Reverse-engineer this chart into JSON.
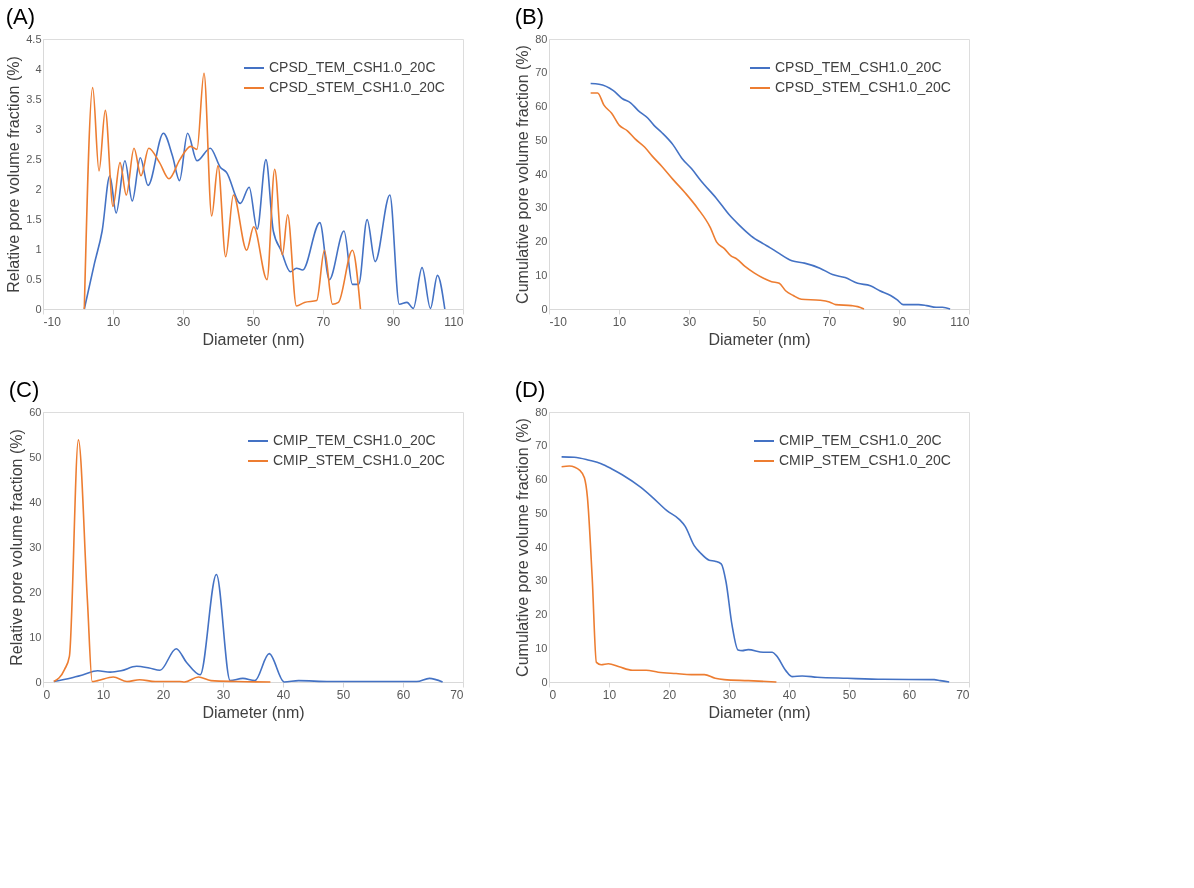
{
  "chart_data": [
    {
      "type": "line",
      "title": "(A)",
      "xlabel": "Diameter (nm)",
      "ylabel": "Relative pore volume fraction (%)",
      "xlim": [
        -10,
        110
      ],
      "xticks": [
        -10,
        10,
        30,
        50,
        70,
        90,
        110
      ],
      "ylim": [
        0,
        4.5
      ],
      "yticks": [
        0,
        0.5,
        1,
        1.5,
        2,
        2.5,
        3,
        3.5,
        4,
        4.5
      ],
      "legend": "top right",
      "series": [
        {
          "name": "CPSD_TEM_CSH1.0_20C",
          "color": "#4472c4",
          "x": [
            1.8,
            4.7,
            6.9,
            9.1,
            10.9,
            13.4,
            15.5,
            17.8,
            20,
            24.4,
            27,
            29,
            31.3,
            34,
            37.8,
            40.7,
            42.4,
            46.4,
            48.9,
            51.2,
            53.7,
            55.8,
            58,
            60.7,
            62.4,
            64.2,
            69.1,
            71.8,
            76,
            78.4,
            80.2,
            82.6,
            84.9,
            89.1,
            91.8,
            94,
            95.8,
            98.3,
            100.7,
            102.7,
            104.8
          ],
          "values": [
            0,
            0.76,
            1.3,
            2.22,
            1.6,
            2.47,
            1.8,
            2.52,
            2.06,
            2.93,
            2.55,
            2.14,
            2.93,
            2.47,
            2.68,
            2.36,
            2.28,
            1.76,
            2.03,
            1.33,
            2.49,
            1.3,
            0.98,
            0.62,
            0.68,
            0.65,
            1.44,
            0.49,
            1.3,
            0.41,
            0.41,
            1.49,
            0.79,
            1.9,
            0.08,
            0.11,
            0.01,
            0.69,
            0.01,
            0.56,
            0
          ]
        },
        {
          "name": "CPSD_STEM_CSH1.0_20C",
          "color": "#ed7d31",
          "x": [
            1.8,
            4.2,
            6,
            7.8,
            10,
            12,
            13.8,
            16,
            18,
            20.2,
            23.3,
            26,
            29.1,
            32.2,
            34,
            36,
            38.2,
            40,
            42.2,
            44.4,
            48.2,
            50.2,
            54,
            56.2,
            58.4,
            59.9,
            62.4,
            64.7,
            68.2,
            70.4,
            72.7,
            74.4,
            78.4,
            80.7
          ],
          "values": [
            0,
            3.69,
            2.3,
            3.31,
            1.71,
            2.44,
            1.9,
            2.68,
            2.22,
            2.68,
            2.44,
            2.17,
            2.49,
            2.71,
            2.66,
            3.93,
            1.55,
            2.39,
            0.87,
            1.9,
            0.98,
            1.37,
            0.49,
            2.33,
            0.9,
            1.57,
            0.05,
            0.11,
            0.14,
            0.98,
            0.08,
            0.11,
            0.98,
            0
          ]
        }
      ]
    },
    {
      "type": "line",
      "title": "(B)",
      "xlabel": "Diameter (nm)",
      "ylabel": "Cumulative pore volume fraction (%)",
      "xlim": [
        -10,
        110
      ],
      "xticks": [
        -10,
        10,
        30,
        50,
        70,
        90,
        110
      ],
      "ylim": [
        0,
        80
      ],
      "yticks": [
        0,
        10,
        20,
        30,
        40,
        50,
        60,
        70,
        80
      ],
      "legend": "top right",
      "series": [
        {
          "name": "CPSD_TEM_CSH1.0_20C",
          "color": "#4472c4",
          "x": [
            1.9,
            4.3,
            8.4,
            11,
            13.3,
            15.5,
            18.2,
            20,
            22.2,
            25.4,
            28,
            30.7,
            33.4,
            37.9,
            41.5,
            44.2,
            47.7,
            51.3,
            53.1,
            55.4,
            59.4,
            63,
            67.4,
            71,
            74.6,
            78.2,
            81.8,
            84.5,
            87.6,
            89.4,
            91.2,
            95.6,
            97.9,
            100.6,
            102.4,
            104.6
          ],
          "values": [
            66.8,
            66.6,
            64.7,
            62.3,
            61.1,
            58.8,
            56.6,
            54.4,
            52.3,
            48.7,
            44.6,
            41.6,
            38,
            32.7,
            27.9,
            25,
            21.7,
            19.3,
            18.2,
            16.7,
            14.3,
            13.6,
            12.1,
            10.2,
            9.3,
            7.6,
            6.9,
            5.4,
            4,
            2.8,
            1.3,
            1.3,
            1,
            0.5,
            0.5,
            0
          ]
        },
        {
          "name": "CPSD_STEM_CSH1.0_20C",
          "color": "#ed7d31",
          "x": [
            1.9,
            3.9,
            5.7,
            7.9,
            10.1,
            12.4,
            14.6,
            17.3,
            19.5,
            22.2,
            25.4,
            29,
            32.5,
            36.1,
            37.9,
            40.1,
            41.9,
            43.7,
            46,
            48.6,
            51.3,
            53.6,
            55.8,
            57.6,
            59.8,
            62.1,
            67.4,
            70.1,
            71.9,
            76.4,
            78.2,
            80
          ],
          "values": [
            64,
            64,
            60.4,
            58,
            54.4,
            52.8,
            50.4,
            48,
            45.3,
            42.3,
            38.4,
            34.3,
            29.8,
            24.1,
            19.8,
            17.9,
            15.8,
            14.8,
            12.6,
            10.7,
            9.1,
            8.1,
            7.6,
            5.4,
            4,
            2.9,
            2.6,
            2.1,
            1.3,
            1,
            0.7,
            0
          ]
        }
      ]
    },
    {
      "type": "line",
      "title": "(C)",
      "xlabel": "Diameter (nm)",
      "ylabel": "Relative pore volume fraction (%)",
      "xlim": [
        0,
        70
      ],
      "xticks": [
        0,
        10,
        20,
        30,
        40,
        50,
        60,
        70
      ],
      "ylim": [
        0,
        60
      ],
      "yticks": [
        0,
        10,
        20,
        30,
        40,
        50,
        60
      ],
      "legend": "top right",
      "series": [
        {
          "name": "CMIP_TEM_CSH1.0_20C",
          "color": "#4472c4",
          "x": [
            1.8,
            4.7,
            6.7,
            9.1,
            11.2,
            13,
            15.6,
            17.7,
            19.5,
            22.2,
            23.9,
            26.2,
            28.9,
            31.2,
            33.3,
            35.3,
            37.7,
            40.2,
            42.6,
            47.8,
            62.3,
            64.4,
            66.6
          ],
          "values": [
            0.1,
            0.9,
            1.6,
            2.5,
            2.2,
            2.5,
            3.5,
            3.1,
            2.6,
            7.4,
            4.4,
            1.6,
            23.9,
            0.3,
            0.8,
            0.3,
            6.3,
            0,
            0.3,
            0.1,
            0.1,
            0.8,
            0
          ]
        },
        {
          "name": "CMIP_STEM_CSH1.0_20C",
          "color": "#ed7d31",
          "x": [
            1.8,
            3.6,
            4.4,
            5.9,
            7.4,
            8.2,
            9.1,
            11.7,
            14,
            16.1,
            18.7,
            22.8,
            23.6,
            25.9,
            28,
            32.2,
            37.9
          ],
          "values": [
            0.1,
            2.8,
            5.7,
            53.8,
            18.2,
            0.1,
            0.3,
            1.1,
            0.1,
            0.5,
            0.1,
            0.1,
            0,
            1.1,
            0.3,
            0.1,
            0
          ]
        }
      ]
    },
    {
      "type": "line",
      "title": "(D)",
      "xlabel": "Diameter (nm)",
      "ylabel": "Cumulative pore volume fraction (%)",
      "xlim": [
        0,
        70
      ],
      "xticks": [
        0,
        10,
        20,
        30,
        40,
        50,
        60,
        70
      ],
      "ylim": [
        0,
        80
      ],
      "yticks": [
        0,
        10,
        20,
        30,
        40,
        50,
        60,
        70,
        80
      ],
      "legend": "top right",
      "series": [
        {
          "name": "CMIP_TEM_CSH1.0_20C",
          "color": "#4472c4",
          "x": [
            2.1,
            4.2,
            6.7,
            8.7,
            10.4,
            12.2,
            15.2,
            17.2,
            19.7,
            21.7,
            22.7,
            24.2,
            25.2,
            26.7,
            27.7,
            28.7,
            29.5,
            30.5,
            31.5,
            32.2,
            33.2,
            35.7,
            37.2,
            37.9,
            39.5,
            40.5,
            42.2,
            44.7,
            49.7,
            55.7,
            64.2,
            65.2,
            66.7
          ],
          "values": [
            66.7,
            66.6,
            65.7,
            64.7,
            63.2,
            61.4,
            57.8,
            54.8,
            50.7,
            48.2,
            46.1,
            40.4,
            38.3,
            36.1,
            35.8,
            35,
            29.7,
            16.9,
            9.5,
            9.3,
            9.6,
            8.8,
            8.8,
            7.8,
            3.3,
            1.6,
            1.8,
            1.4,
            1.1,
            0.8,
            0.7,
            0.4,
            0
          ]
        },
        {
          "name": "CMIP_STEM_CSH1.0_20C",
          "color": "#ed7d31",
          "x": [
            2.1,
            3.4,
            5.2,
            5.9,
            6.4,
            7.2,
            7.9,
            8.7,
            9.9,
            11.7,
            13.9,
            16.2,
            18.2,
            21.2,
            23.7,
            25.9,
            27.7,
            29.2,
            33.2,
            37.9
          ],
          "values": [
            63.8,
            64,
            62.6,
            60.5,
            54.8,
            30.9,
            5.8,
            5.1,
            5.4,
            4.5,
            3.5,
            3.5,
            2.9,
            2.5,
            2.2,
            2.2,
            1.1,
            0.7,
            0.4,
            0
          ]
        }
      ]
    }
  ]
}
